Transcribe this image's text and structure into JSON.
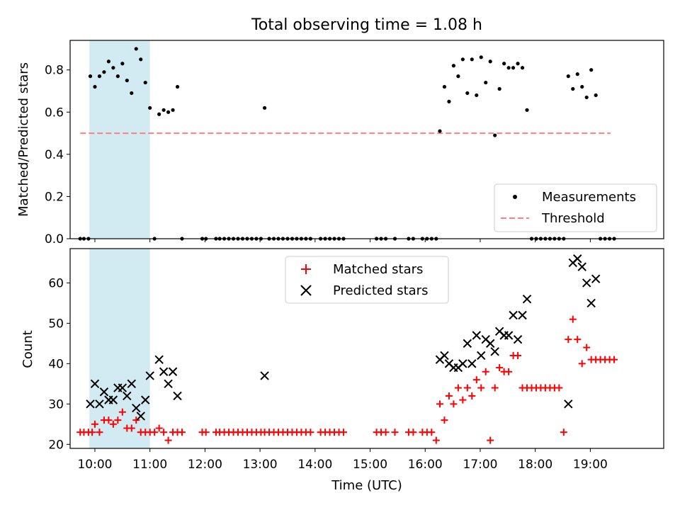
{
  "title": "Total observing time = 1.08 h",
  "colors": {
    "matched": "#ff0000",
    "predicted": "#000000",
    "threshold": "#ff7f7f",
    "shade": "#add8e6"
  },
  "chart_data": [
    {
      "type": "scatter",
      "panel": "top",
      "ylabel": "Matched/Predicted stars",
      "xlim": [
        "09:33",
        "20:20"
      ],
      "ylim": [
        0,
        0.94
      ],
      "yticks": [
        "0.0",
        "0.2",
        "0.4",
        "0.6",
        "0.8"
      ],
      "shaded_interval": [
        "09:54",
        "11:00"
      ],
      "threshold": {
        "name": "Threshold",
        "value": 0.5,
        "x_range": [
          "09:44",
          "19:22"
        ]
      },
      "legend": {
        "placement": "lower right",
        "entries": [
          "Measurements",
          "Threshold"
        ]
      },
      "series": [
        {
          "name": "Measurements",
          "points": [
            [
              "09:44",
              0
            ],
            [
              "09:48",
              0
            ],
            [
              "09:53",
              0
            ],
            [
              "09:55",
              0.77
            ],
            [
              "10:00",
              0.72
            ],
            [
              "10:05",
              0.77
            ],
            [
              "10:10",
              0.79
            ],
            [
              "10:15",
              0.84
            ],
            [
              "10:20",
              0.81
            ],
            [
              "10:25",
              0.77
            ],
            [
              "10:30",
              0.83
            ],
            [
              "10:35",
              0.75
            ],
            [
              "10:40",
              0.69
            ],
            [
              "10:45",
              0.9
            ],
            [
              "10:50",
              0.85
            ],
            [
              "10:55",
              0.74
            ],
            [
              "11:00",
              0.62
            ],
            [
              "11:05",
              0
            ],
            [
              "11:10",
              0.59
            ],
            [
              "11:15",
              0.61
            ],
            [
              "11:20",
              0.6
            ],
            [
              "11:25",
              0.61
            ],
            [
              "11:30",
              0.72
            ],
            [
              "11:35",
              0
            ],
            [
              "11:57",
              0
            ],
            [
              "12:01",
              0
            ],
            [
              "12:12",
              0
            ],
            [
              "12:16",
              0
            ],
            [
              "12:21",
              0
            ],
            [
              "12:26",
              0
            ],
            [
              "12:31",
              0
            ],
            [
              "12:36",
              0
            ],
            [
              "12:41",
              0
            ],
            [
              "12:46",
              0
            ],
            [
              "12:51",
              0
            ],
            [
              "12:56",
              0
            ],
            [
              "13:01",
              0
            ],
            [
              "13:05",
              0.62
            ],
            [
              "13:10",
              0
            ],
            [
              "13:15",
              0
            ],
            [
              "13:20",
              0
            ],
            [
              "13:25",
              0
            ],
            [
              "13:30",
              0
            ],
            [
              "13:35",
              0
            ],
            [
              "13:40",
              0
            ],
            [
              "13:45",
              0
            ],
            [
              "13:50",
              0
            ],
            [
              "13:55",
              0
            ],
            [
              "14:06",
              0
            ],
            [
              "14:11",
              0
            ],
            [
              "14:16",
              0
            ],
            [
              "14:21",
              0
            ],
            [
              "14:26",
              0
            ],
            [
              "14:31",
              0
            ],
            [
              "15:07",
              0
            ],
            [
              "15:12",
              0
            ],
            [
              "15:17",
              0
            ],
            [
              "15:27",
              0
            ],
            [
              "15:42",
              0
            ],
            [
              "15:47",
              0
            ],
            [
              "15:57",
              0
            ],
            [
              "16:02",
              0
            ],
            [
              "16:07",
              0
            ],
            [
              "16:12",
              0
            ],
            [
              "16:16",
              0.51
            ],
            [
              "16:21",
              0.72
            ],
            [
              "16:26",
              0.65
            ],
            [
              "16:31",
              0.82
            ],
            [
              "16:36",
              0.77
            ],
            [
              "16:41",
              0.85
            ],
            [
              "16:46",
              0.69
            ],
            [
              "16:51",
              0.85
            ],
            [
              "16:56",
              0.68
            ],
            [
              "17:01",
              0.86
            ],
            [
              "17:06",
              0.74
            ],
            [
              "17:11",
              0.84
            ],
            [
              "17:16",
              0.49
            ],
            [
              "17:21",
              0.71
            ],
            [
              "17:26",
              0.83
            ],
            [
              "17:31",
              0.81
            ],
            [
              "17:36",
              0.81
            ],
            [
              "17:41",
              0.83
            ],
            [
              "17:46",
              0.81
            ],
            [
              "17:51",
              0.61
            ],
            [
              "17:56",
              0
            ],
            [
              "18:01",
              0
            ],
            [
              "18:06",
              0
            ],
            [
              "18:11",
              0
            ],
            [
              "18:16",
              0
            ],
            [
              "18:21",
              0
            ],
            [
              "18:26",
              0
            ],
            [
              "18:31",
              0
            ],
            [
              "18:36",
              0.77
            ],
            [
              "18:41",
              0.71
            ],
            [
              "18:46",
              0.78
            ],
            [
              "18:51",
              0.72
            ],
            [
              "18:56",
              0.67
            ],
            [
              "19:01",
              0.8
            ],
            [
              "19:06",
              0.68
            ],
            [
              "19:11",
              0
            ],
            [
              "19:16",
              0
            ],
            [
              "19:21",
              0
            ],
            [
              "19:26",
              0
            ]
          ]
        }
      ]
    },
    {
      "type": "scatter",
      "panel": "bottom",
      "xlabel": "Time (UTC)",
      "ylabel": "Count",
      "xlim": [
        "09:33",
        "20:20"
      ],
      "ylim": [
        19,
        68.5
      ],
      "yticks": [
        "20",
        "30",
        "40",
        "50",
        "60"
      ],
      "xticks": [
        "10:00",
        "11:00",
        "12:00",
        "13:00",
        "14:00",
        "15:00",
        "16:00",
        "17:00",
        "18:00",
        "19:00"
      ],
      "shaded_interval": [
        "09:54",
        "11:00"
      ],
      "legend": {
        "placement": "upper center",
        "entries": [
          "Matched stars",
          "Predicted stars"
        ]
      },
      "series": [
        {
          "name": "Matched stars",
          "marker": "+",
          "points": [
            [
              "09:44",
              23
            ],
            [
              "09:48",
              23
            ],
            [
              "09:53",
              23
            ],
            [
              "09:57",
              23
            ],
            [
              "10:00",
              25
            ],
            [
              "10:05",
              23
            ],
            [
              "10:10",
              26
            ],
            [
              "10:15",
              26
            ],
            [
              "10:20",
              25
            ],
            [
              "10:25",
              26
            ],
            [
              "10:30",
              28
            ],
            [
              "10:35",
              24
            ],
            [
              "10:40",
              24
            ],
            [
              "10:45",
              26
            ],
            [
              "10:50",
              23
            ],
            [
              "10:55",
              23
            ],
            [
              "11:00",
              23
            ],
            [
              "11:05",
              23
            ],
            [
              "11:10",
              24
            ],
            [
              "11:15",
              23
            ],
            [
              "11:20",
              21
            ],
            [
              "11:25",
              23
            ],
            [
              "11:30",
              23
            ],
            [
              "11:35",
              23
            ],
            [
              "11:57",
              23
            ],
            [
              "12:01",
              23
            ],
            [
              "12:12",
              23
            ],
            [
              "12:16",
              23
            ],
            [
              "12:21",
              23
            ],
            [
              "12:26",
              23
            ],
            [
              "12:31",
              23
            ],
            [
              "12:36",
              23
            ],
            [
              "12:41",
              23
            ],
            [
              "12:46",
              23
            ],
            [
              "12:51",
              23
            ],
            [
              "12:56",
              23
            ],
            [
              "13:01",
              23
            ],
            [
              "13:05",
              23
            ],
            [
              "13:10",
              23
            ],
            [
              "13:15",
              23
            ],
            [
              "13:20",
              23
            ],
            [
              "13:25",
              23
            ],
            [
              "13:30",
              23
            ],
            [
              "13:35",
              23
            ],
            [
              "13:40",
              23
            ],
            [
              "13:45",
              23
            ],
            [
              "13:50",
              23
            ],
            [
              "13:55",
              23
            ],
            [
              "14:06",
              23
            ],
            [
              "14:11",
              23
            ],
            [
              "14:16",
              23
            ],
            [
              "14:21",
              23
            ],
            [
              "14:26",
              23
            ],
            [
              "14:31",
              23
            ],
            [
              "15:07",
              23
            ],
            [
              "15:12",
              23
            ],
            [
              "15:17",
              23
            ],
            [
              "15:27",
              23
            ],
            [
              "15:42",
              23
            ],
            [
              "15:47",
              23
            ],
            [
              "15:57",
              23
            ],
            [
              "16:02",
              23
            ],
            [
              "16:07",
              23
            ],
            [
              "16:12",
              21
            ],
            [
              "16:16",
              30
            ],
            [
              "16:21",
              26
            ],
            [
              "16:26",
              32
            ],
            [
              "16:31",
              30
            ],
            [
              "16:36",
              34
            ],
            [
              "16:41",
              31
            ],
            [
              "16:46",
              34
            ],
            [
              "16:51",
              32
            ],
            [
              "16:56",
              36
            ],
            [
              "17:01",
              34
            ],
            [
              "17:06",
              38
            ],
            [
              "17:11",
              21
            ],
            [
              "17:16",
              34
            ],
            [
              "17:21",
              39
            ],
            [
              "17:26",
              38
            ],
            [
              "17:31",
              38
            ],
            [
              "17:36",
              42
            ],
            [
              "17:41",
              42
            ],
            [
              "17:46",
              34
            ],
            [
              "17:51",
              34
            ],
            [
              "17:56",
              34
            ],
            [
              "18:01",
              34
            ],
            [
              "18:06",
              34
            ],
            [
              "18:11",
              34
            ],
            [
              "18:16",
              34
            ],
            [
              "18:21",
              34
            ],
            [
              "18:26",
              34
            ],
            [
              "18:31",
              23
            ],
            [
              "18:36",
              46
            ],
            [
              "18:41",
              51
            ],
            [
              "18:46",
              46
            ],
            [
              "18:51",
              40
            ],
            [
              "18:56",
              44
            ],
            [
              "19:01",
              41
            ],
            [
              "19:06",
              41
            ],
            [
              "19:11",
              41
            ],
            [
              "19:16",
              41
            ],
            [
              "19:21",
              41
            ],
            [
              "19:26",
              41
            ]
          ]
        },
        {
          "name": "Predicted stars",
          "marker": "x",
          "points": [
            [
              "09:55",
              30
            ],
            [
              "10:00",
              35
            ],
            [
              "10:05",
              30
            ],
            [
              "10:10",
              33
            ],
            [
              "10:15",
              31
            ],
            [
              "10:20",
              31
            ],
            [
              "10:25",
              34
            ],
            [
              "10:30",
              34
            ],
            [
              "10:35",
              32
            ],
            [
              "10:40",
              35
            ],
            [
              "10:45",
              29
            ],
            [
              "10:50",
              27
            ],
            [
              "10:55",
              31
            ],
            [
              "11:00",
              37
            ],
            [
              "11:10",
              41
            ],
            [
              "11:15",
              38
            ],
            [
              "11:20",
              35
            ],
            [
              "11:25",
              38
            ],
            [
              "11:30",
              32
            ],
            [
              "13:05",
              37
            ],
            [
              "16:16",
              41
            ],
            [
              "16:21",
              42
            ],
            [
              "16:26",
              40
            ],
            [
              "16:31",
              39
            ],
            [
              "16:36",
              39
            ],
            [
              "16:41",
              40
            ],
            [
              "16:46",
              45
            ],
            [
              "16:51",
              40
            ],
            [
              "16:56",
              47
            ],
            [
              "17:01",
              42
            ],
            [
              "17:06",
              46
            ],
            [
              "17:11",
              45
            ],
            [
              "17:16",
              43
            ],
            [
              "17:21",
              48
            ],
            [
              "17:26",
              47
            ],
            [
              "17:31",
              47
            ],
            [
              "17:36",
              52
            ],
            [
              "17:41",
              46
            ],
            [
              "17:46",
              52
            ],
            [
              "17:51",
              56
            ],
            [
              "18:36",
              30
            ],
            [
              "18:41",
              65
            ],
            [
              "18:46",
              66
            ],
            [
              "18:51",
              64
            ],
            [
              "18:56",
              60
            ],
            [
              "19:01",
              55
            ],
            [
              "19:06",
              61
            ]
          ]
        }
      ]
    }
  ]
}
